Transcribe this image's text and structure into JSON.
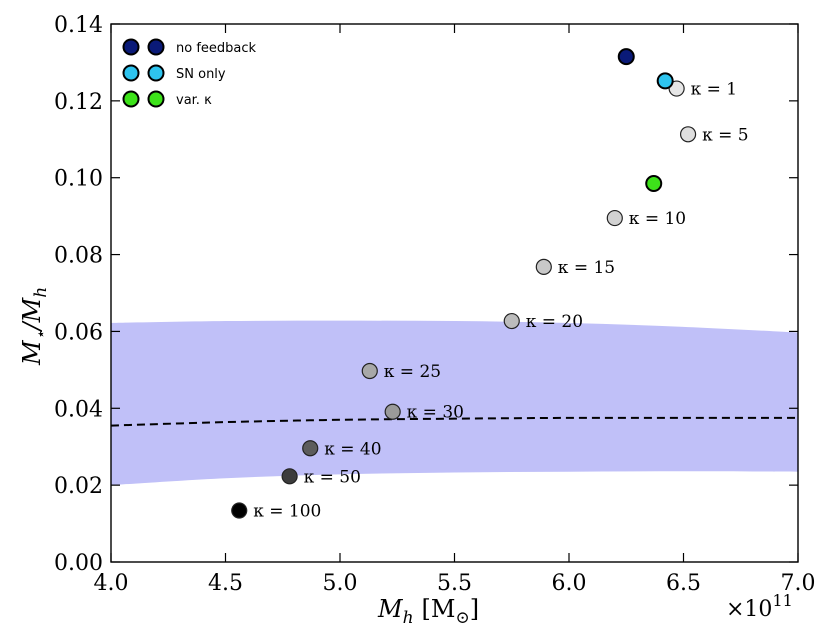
{
  "chart_data": {
    "type": "scatter",
    "xlabel": "M_h [M_⊙]",
    "xlabel_main": "M",
    "xlabel_sub": "h",
    "xlabel_unit": "[M",
    "xlabel_unit_sub": "⊙",
    "xlabel_unit_close": "]",
    "ylabel_main": "M",
    "ylabel_sub": "⋆",
    "ylabel_slash": "/M",
    "ylabel_sub2": "h",
    "x_multiplier": "×10",
    "x_multiplier_exp": "11",
    "xlim": [
      4.0,
      7.0
    ],
    "ylim": [
      0.0,
      0.14
    ],
    "x_ticks": [
      "4.0",
      "4.5",
      "5.0",
      "5.5",
      "6.0",
      "6.5",
      "7.0"
    ],
    "y_ticks": [
      "0.00",
      "0.02",
      "0.04",
      "0.06",
      "0.08",
      "0.10",
      "0.12",
      "0.14"
    ],
    "colors": {
      "no_feedback": "#0a1a78",
      "sn_only": "#2ec4ef",
      "var_kappa": "#3de21a",
      "band": "#c0c0f8",
      "dashed": "#000000"
    },
    "legend": {
      "position": "top-left",
      "entries": [
        {
          "label": "no feedback",
          "color": "#0a1a78"
        },
        {
          "label": "SN only",
          "color": "#2ec4ef"
        },
        {
          "label": "var. κ",
          "color": "#3de21a"
        }
      ]
    },
    "special_points": [
      {
        "name": "no feedback",
        "x": 6.25,
        "y": 0.1315,
        "color": "#0a1a78"
      },
      {
        "name": "SN only",
        "x": 6.42,
        "y": 0.1252,
        "color": "#2ec4ef"
      },
      {
        "name": "var. kappa",
        "x": 6.37,
        "y": 0.0985,
        "color": "#3de21a"
      }
    ],
    "kappa_points": [
      {
        "label": "κ = 1",
        "x": 6.47,
        "y": 0.1232,
        "gray": "#e6e6e6"
      },
      {
        "label": "κ = 5",
        "x": 6.52,
        "y": 0.1113,
        "gray": "#dedede"
      },
      {
        "label": "κ = 10",
        "x": 6.2,
        "y": 0.0895,
        "gray": "#d2d2d2"
      },
      {
        "label": "κ = 15",
        "x": 5.89,
        "y": 0.0768,
        "gray": "#c8c8c8"
      },
      {
        "label": "κ = 20",
        "x": 5.75,
        "y": 0.0627,
        "gray": "#bcbcbc"
      },
      {
        "label": "κ = 25",
        "x": 5.13,
        "y": 0.0497,
        "gray": "#a8a8a8"
      },
      {
        "label": "κ = 30",
        "x": 5.23,
        "y": 0.0391,
        "gray": "#9a9a9a"
      },
      {
        "label": "κ = 40",
        "x": 4.87,
        "y": 0.0296,
        "gray": "#5c5c5c"
      },
      {
        "label": "κ = 50",
        "x": 4.78,
        "y": 0.0223,
        "gray": "#3c3c3c"
      },
      {
        "label": "κ = 100",
        "x": 4.56,
        "y": 0.0134,
        "gray": "#000000"
      }
    ],
    "band": {
      "x": [
        4.0,
        4.5,
        5.0,
        5.5,
        6.0,
        6.5,
        7.0
      ],
      "upper": [
        0.0622,
        0.0627,
        0.0628,
        0.0627,
        0.0622,
        0.0612,
        0.0597
      ],
      "lower": [
        0.02,
        0.0218,
        0.0228,
        0.0233,
        0.0235,
        0.0236,
        0.0235
      ]
    },
    "median_line": {
      "style": "dashed",
      "x": [
        4.0,
        4.5,
        5.0,
        5.5,
        6.0,
        6.5,
        7.0
      ],
      "y": [
        0.0355,
        0.0364,
        0.037,
        0.0373,
        0.0375,
        0.0375,
        0.0375
      ]
    }
  }
}
